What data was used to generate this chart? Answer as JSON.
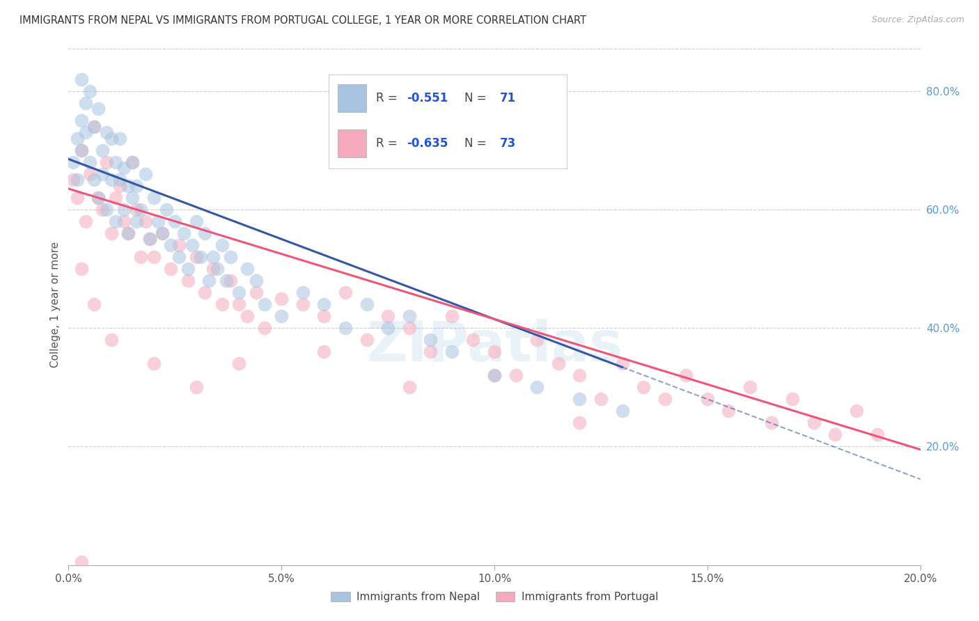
{
  "title": "IMMIGRANTS FROM NEPAL VS IMMIGRANTS FROM PORTUGAL COLLEGE, 1 YEAR OR MORE CORRELATION CHART",
  "source": "Source: ZipAtlas.com",
  "ylabel": "College, 1 year or more",
  "legend_nepal": "Immigrants from Nepal",
  "legend_portugal": "Immigrants from Portugal",
  "R_nepal": -0.551,
  "N_nepal": 71,
  "R_portugal": -0.635,
  "N_portugal": 73,
  "color_nepal": "#A8C4E0",
  "color_portugal": "#F4AABC",
  "trendline_nepal": "#3355AA",
  "trendline_portugal": "#EE5577",
  "watermark": "ZIPatlas",
  "xmin": 0.0,
  "xmax": 0.2,
  "ymin": 0.0,
  "ymax": 0.88,
  "nepal_trendline_x0": 0.0,
  "nepal_trendline_y0": 0.685,
  "nepal_trendline_x1": 0.2,
  "nepal_trendline_y1": 0.145,
  "nepal_trendline_solid_end": 0.13,
  "portugal_trendline_x0": 0.0,
  "portugal_trendline_y0": 0.635,
  "portugal_trendline_x1": 0.2,
  "portugal_trendline_y1": 0.195,
  "nepal_scatter_x": [
    0.001,
    0.002,
    0.002,
    0.003,
    0.003,
    0.003,
    0.004,
    0.004,
    0.005,
    0.005,
    0.006,
    0.006,
    0.007,
    0.007,
    0.008,
    0.008,
    0.009,
    0.009,
    0.01,
    0.01,
    0.011,
    0.011,
    0.012,
    0.012,
    0.013,
    0.013,
    0.014,
    0.014,
    0.015,
    0.015,
    0.016,
    0.016,
    0.017,
    0.018,
    0.019,
    0.02,
    0.021,
    0.022,
    0.023,
    0.024,
    0.025,
    0.026,
    0.027,
    0.028,
    0.029,
    0.03,
    0.031,
    0.032,
    0.033,
    0.034,
    0.035,
    0.036,
    0.037,
    0.038,
    0.04,
    0.042,
    0.044,
    0.046,
    0.05,
    0.055,
    0.06,
    0.065,
    0.07,
    0.075,
    0.08,
    0.085,
    0.09,
    0.1,
    0.11,
    0.12,
    0.13
  ],
  "nepal_scatter_y": [
    0.68,
    0.72,
    0.65,
    0.75,
    0.7,
    0.82,
    0.78,
    0.73,
    0.8,
    0.68,
    0.74,
    0.65,
    0.77,
    0.62,
    0.7,
    0.66,
    0.73,
    0.6,
    0.72,
    0.65,
    0.68,
    0.58,
    0.65,
    0.72,
    0.67,
    0.6,
    0.64,
    0.56,
    0.62,
    0.68,
    0.64,
    0.58,
    0.6,
    0.66,
    0.55,
    0.62,
    0.58,
    0.56,
    0.6,
    0.54,
    0.58,
    0.52,
    0.56,
    0.5,
    0.54,
    0.58,
    0.52,
    0.56,
    0.48,
    0.52,
    0.5,
    0.54,
    0.48,
    0.52,
    0.46,
    0.5,
    0.48,
    0.44,
    0.42,
    0.46,
    0.44,
    0.4,
    0.44,
    0.4,
    0.42,
    0.38,
    0.36,
    0.32,
    0.3,
    0.28,
    0.26
  ],
  "portugal_scatter_x": [
    0.001,
    0.002,
    0.003,
    0.004,
    0.005,
    0.006,
    0.007,
    0.008,
    0.009,
    0.01,
    0.011,
    0.012,
    0.013,
    0.014,
    0.015,
    0.016,
    0.017,
    0.018,
    0.019,
    0.02,
    0.022,
    0.024,
    0.026,
    0.028,
    0.03,
    0.032,
    0.034,
    0.036,
    0.038,
    0.04,
    0.042,
    0.044,
    0.046,
    0.05,
    0.055,
    0.06,
    0.065,
    0.07,
    0.075,
    0.08,
    0.085,
    0.09,
    0.095,
    0.1,
    0.105,
    0.11,
    0.115,
    0.12,
    0.125,
    0.13,
    0.135,
    0.14,
    0.145,
    0.15,
    0.155,
    0.16,
    0.165,
    0.17,
    0.175,
    0.18,
    0.185,
    0.19,
    0.003,
    0.006,
    0.01,
    0.02,
    0.03,
    0.04,
    0.06,
    0.08,
    0.1,
    0.12,
    0.003
  ],
  "portugal_scatter_y": [
    0.65,
    0.62,
    0.7,
    0.58,
    0.66,
    0.74,
    0.62,
    0.6,
    0.68,
    0.56,
    0.62,
    0.64,
    0.58,
    0.56,
    0.68,
    0.6,
    0.52,
    0.58,
    0.55,
    0.52,
    0.56,
    0.5,
    0.54,
    0.48,
    0.52,
    0.46,
    0.5,
    0.44,
    0.48,
    0.44,
    0.42,
    0.46,
    0.4,
    0.45,
    0.44,
    0.42,
    0.46,
    0.38,
    0.42,
    0.4,
    0.36,
    0.42,
    0.38,
    0.36,
    0.32,
    0.38,
    0.34,
    0.32,
    0.28,
    0.34,
    0.3,
    0.28,
    0.32,
    0.28,
    0.26,
    0.3,
    0.24,
    0.28,
    0.24,
    0.22,
    0.26,
    0.22,
    0.5,
    0.44,
    0.38,
    0.34,
    0.3,
    0.34,
    0.36,
    0.3,
    0.32,
    0.24,
    0.005
  ]
}
